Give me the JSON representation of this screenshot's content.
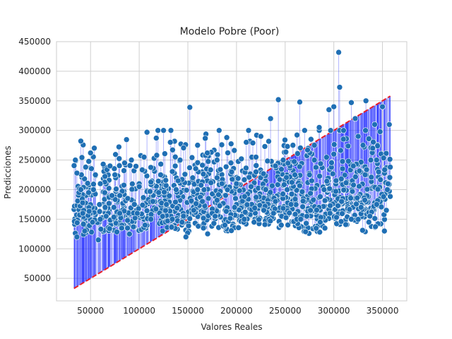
{
  "chart_data": {
    "type": "scatter",
    "title": "Modelo Pobre (Poor)",
    "xlabel": "Valores Reales",
    "ylabel": "Predicciones",
    "xlim": [
      15000,
      375000
    ],
    "ylim": [
      12000,
      450000
    ],
    "xticks": [
      50000,
      100000,
      150000,
      200000,
      250000,
      300000,
      350000
    ],
    "yticks": [
      50000,
      100000,
      150000,
      200000,
      250000,
      300000,
      350000,
      400000,
      450000
    ],
    "xtick_labels": [
      "50000",
      "100000",
      "150000",
      "200000",
      "250000",
      "300000",
      "350000"
    ],
    "ytick_labels": [
      "50000",
      "100000",
      "150000",
      "200000",
      "250000",
      "300000",
      "350000",
      "400000",
      "450000"
    ],
    "grid": true,
    "ideal_line": {
      "x": [
        33000,
        358000
      ],
      "y": [
        33000,
        358000
      ],
      "color": "#e8202a",
      "style": "dashed"
    },
    "colors": {
      "points": "#1f6fb4",
      "point_edge": "#ffffff",
      "error_lines": "#1f2bff",
      "background": "#ffffff",
      "grid": "#cfcfcf",
      "spine": "#cccccc"
    },
    "series": [
      {
        "x": [
          36000,
          40000,
          42000,
          45000,
          48000,
          50000,
          53000,
          55000,
          60000,
          63000,
          65000,
          70000,
          72000,
          75000,
          80000,
          85000,
          88000,
          92000,
          95000,
          100000,
          105000,
          108000,
          112000,
          118000,
          122000,
          125000,
          128000,
          132000,
          138000,
          142000,
          148000,
          152000,
          155000,
          160000,
          165000,
          170000,
          175000,
          180000,
          185000,
          190000,
          195000,
          200000,
          205000,
          210000,
          215000,
          220000,
          225000,
          230000,
          235000,
          240000,
          243000,
          248000,
          252000,
          258000,
          262000,
          265000,
          270000,
          275000,
          280000,
          285000,
          290000,
          295000,
          300000,
          305000,
          306000,
          310000,
          315000,
          318000,
          322000,
          325000,
          330000,
          333000,
          338000,
          342000,
          346000,
          350000,
          352000,
          355000,
          357000,
          358000,
          36000,
          44000,
          52000,
          58000,
          66000,
          74000,
          82000,
          90000,
          98000,
          106000,
          114000,
          124000,
          134000,
          144000,
          156000,
          166000,
          178000,
          188000,
          198000,
          208000,
          218000,
          228000,
          238000,
          246000,
          256000,
          266000,
          276000,
          286000,
          296000,
          308000,
          318000,
          328000,
          336000,
          344000,
          354000,
          40000,
          60000,
          80000,
          100000,
          120000,
          140000,
          160000,
          180000,
          200000,
          220000,
          240000,
          260000,
          280000,
          300000,
          320000,
          340000
        ],
        "y": [
          228000,
          282000,
          160000,
          238000,
          195000,
          262000,
          200000,
          225000,
          150000,
          243000,
          170000,
          240000,
          190000,
          225000,
          160000,
          245000,
          135000,
          250000,
          175000,
          210000,
          255000,
          297000,
          150000,
          258000,
          225000,
          300000,
          175000,
          280000,
          200000,
          250000,
          120000,
          339000,
          220000,
          275000,
          180000,
          262000,
          160000,
          250000,
          210000,
          288000,
          230000,
          175000,
          252000,
          280000,
          205000,
          255000,
          290000,
          200000,
          320000,
          180000,
          352000,
          250000,
          200000,
          275000,
          150000,
          348000,
          300000,
          225000,
          275000,
          305000,
          200000,
          335000,
          340000,
          432000,
          373000,
          300000,
          248000,
          347000,
          320000,
          290000,
          275000,
          350000,
          250000,
          310000,
          230000,
          340000,
          130000,
          200000,
          310000,
          238000,
          120000,
          130000,
          145000,
          115000,
          155000,
          170000,
          135000,
          125000,
          160000,
          140000,
          180000,
          130000,
          150000,
          145000,
          165000,
          135000,
          155000,
          140000,
          170000,
          150000,
          145000,
          165000,
          160000,
          140000,
          175000,
          150000,
          165000,
          145000,
          160000,
          180000,
          150000,
          170000,
          145000,
          175000,
          165000,
          200000,
          210000,
          190000,
          205000,
          195000,
          215000,
          200000,
          220000,
          210000,
          230000,
          240000,
          225000,
          250000,
          260000,
          240000,
          270000
        ]
      }
    ]
  }
}
